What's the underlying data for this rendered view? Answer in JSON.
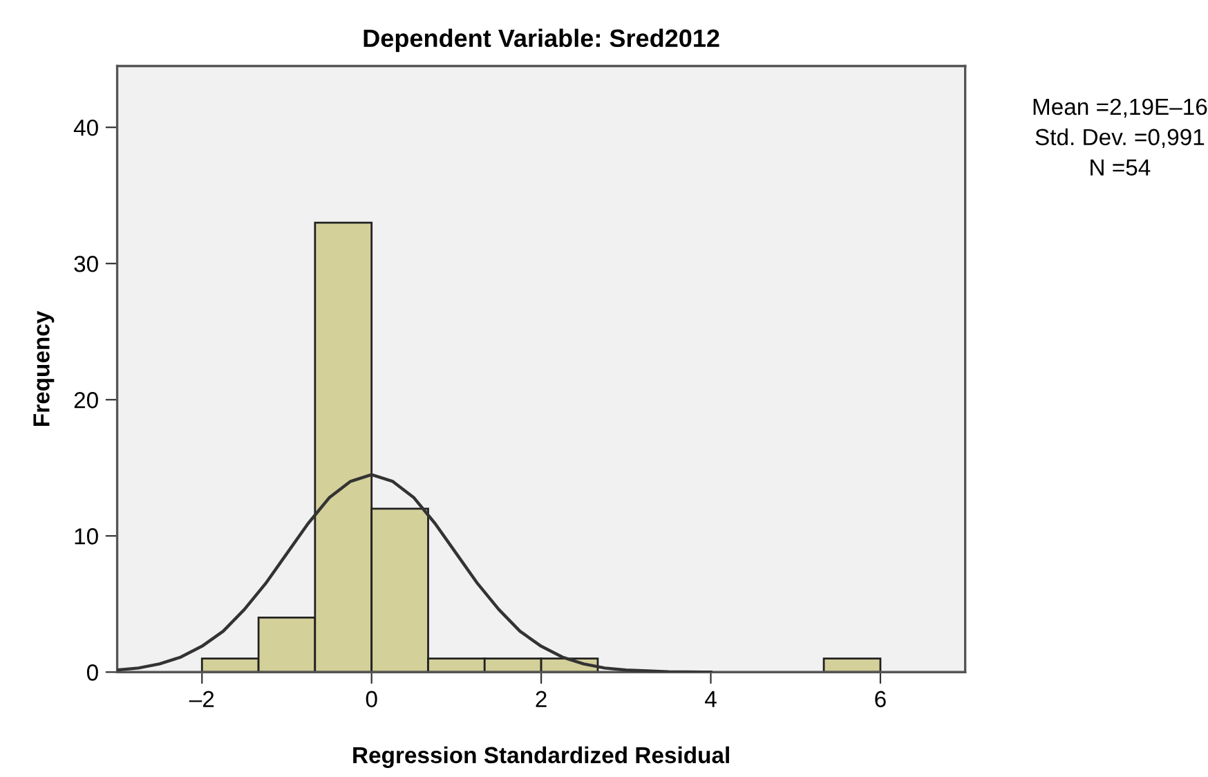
{
  "chart_data": {
    "type": "histogram",
    "title": "Dependent Variable: Sred2012",
    "xlabel": "Regression Standardized Residual",
    "ylabel": "Frequency",
    "bins": [
      -2,
      -1.333,
      -0.667,
      0,
      0.667,
      1.333,
      2,
      2.667,
      3.333,
      4,
      4.667,
      5.333,
      6
    ],
    "values": [
      1,
      4,
      33,
      12,
      1,
      1,
      1,
      0,
      0,
      0,
      0,
      1
    ],
    "color": "#d4d09a",
    "series": [
      {
        "type": "line",
        "color": "#333333",
        "x": [
          -3,
          -2.75,
          -2.5,
          -2.25,
          -2,
          -1.75,
          -1.5,
          -1.25,
          -1,
          -0.75,
          -0.5,
          -0.25,
          0,
          0.25,
          0.5,
          0.75,
          1,
          1.25,
          1.5,
          1.75,
          2,
          2.25,
          2.5,
          2.75,
          3,
          3.5,
          4
        ],
        "values": [
          0.15,
          0.3,
          0.6,
          1.1,
          1.9,
          3.0,
          4.6,
          6.5,
          8.7,
          10.9,
          12.8,
          14.0,
          14.5,
          14.0,
          12.8,
          10.9,
          8.7,
          6.5,
          4.6,
          3.0,
          1.9,
          1.1,
          0.6,
          0.3,
          0.15,
          0.03,
          0
        ]
      }
    ],
    "xlim": [
      -3,
      7
    ],
    "ylim": [
      0,
      44.5
    ],
    "xticks": [
      {
        "value": -2,
        "label": "–2"
      },
      0,
      2,
      4,
      6
    ],
    "yticks": [
      0,
      10,
      20,
      30,
      40
    ],
    "annotations": [
      "Mean =2,19E–16",
      "Std. Dev. =0,991",
      "N =54"
    ]
  }
}
